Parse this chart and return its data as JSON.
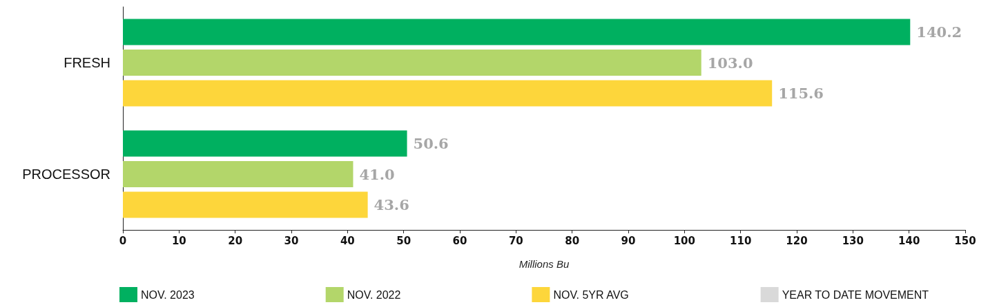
{
  "chart_data": {
    "type": "bar",
    "orientation": "horizontal",
    "xlabel": "Millions Bu",
    "categories": [
      "FRESH",
      "PROCESSOR"
    ],
    "series": [
      {
        "name": "NOV. 2023",
        "color": "#00b060",
        "values": [
          140.2,
          50.6
        ],
        "value_labels": [
          "140.2",
          "50.6"
        ]
      },
      {
        "name": "NOV. 2022",
        "color": "#b3d66a",
        "values": [
          103.0,
          41.0
        ],
        "value_labels": [
          "103.0",
          "41.0"
        ]
      },
      {
        "name": "NOV. 5YR AVG",
        "color": "#fdd63b",
        "values": [
          115.6,
          43.6
        ],
        "value_labels": [
          "115.6",
          "43.6"
        ]
      },
      {
        "name": "YEAR TO DATE MOVEMENT",
        "color": "#d9d9d9",
        "values": [
          null,
          null
        ]
      }
    ],
    "xlim": [
      0,
      150
    ],
    "xticks": [
      0,
      10,
      20,
      30,
      40,
      50,
      60,
      70,
      80,
      90,
      100,
      110,
      120,
      130,
      140,
      150
    ],
    "grid": false,
    "legend": "bottom"
  }
}
